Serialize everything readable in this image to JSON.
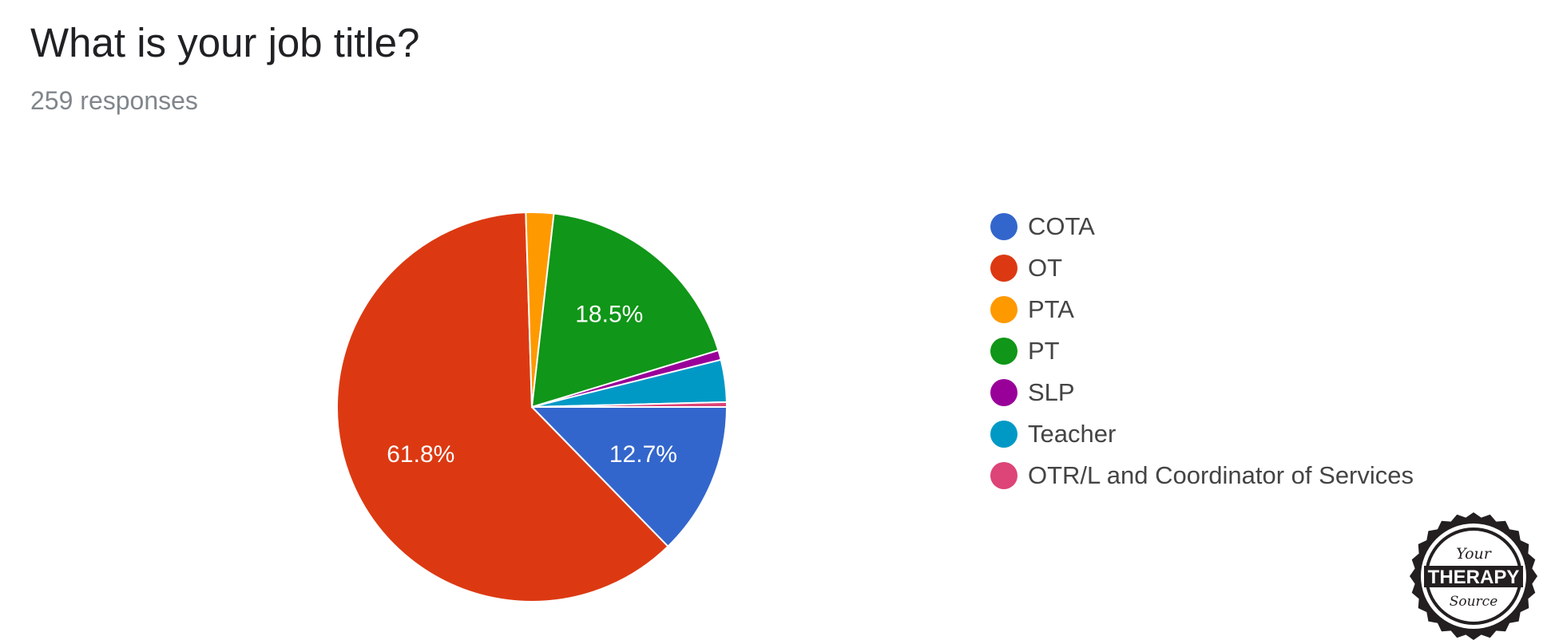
{
  "header": {
    "title": "What is your job title?",
    "responses": "259 responses"
  },
  "chart_data": {
    "type": "pie",
    "title": "What is your job title?",
    "subtitle": "259 responses",
    "legend_position": "right",
    "slices": [
      {
        "label": "COTA",
        "value": 12.7,
        "color": "#3366cc",
        "data_label": "12.7%"
      },
      {
        "label": "OT",
        "value": 61.8,
        "color": "#dc3912",
        "data_label": "61.8%"
      },
      {
        "label": "PTA",
        "value": 2.3,
        "color": "#ff9900",
        "data_label": ""
      },
      {
        "label": "PT",
        "value": 18.5,
        "color": "#109618",
        "data_label": "18.5%"
      },
      {
        "label": "SLP",
        "value": 0.8,
        "color": "#990099",
        "data_label": ""
      },
      {
        "label": "Teacher",
        "value": 3.5,
        "color": "#0099c6",
        "data_label": ""
      },
      {
        "label": "OTR/L and Coordinator of Services",
        "value": 0.4,
        "color": "#dd4477",
        "data_label": ""
      }
    ]
  },
  "logo": {
    "line1": "Your",
    "line2": "THERAPY",
    "line3": "Source"
  }
}
